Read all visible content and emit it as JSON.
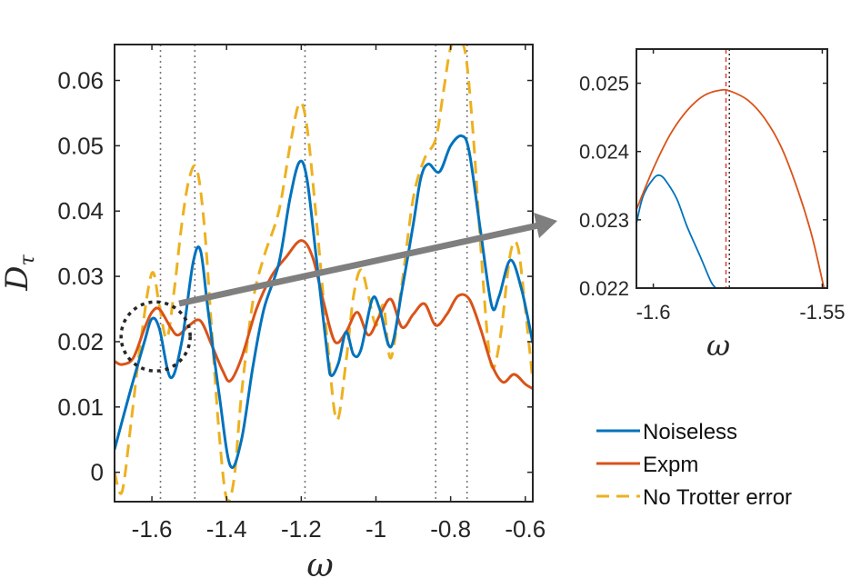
{
  "colors": {
    "noiseless": "#0072BD",
    "expm": "#D95319",
    "no_trotter": "#EDB120",
    "frame": "#262626",
    "guide": "#777777",
    "arrow": "#7F7F7F",
    "red_marker": "#E03030"
  },
  "chart_data": [
    {
      "type": "line",
      "role": "main",
      "xlabel": "ω",
      "ylabel_main": "D",
      "ylabel_sub": "τ",
      "xlim": [
        -1.7,
        -0.58
      ],
      "ylim": [
        -0.0045,
        0.0655
      ],
      "xticks": [
        -1.6,
        -1.4,
        -1.2,
        -1,
        -0.8,
        -0.6
      ],
      "xtick_labels": [
        "-1.6",
        "-1.4",
        "-1.2",
        "-1",
        "-0.8",
        "-0.6"
      ],
      "yticks": [
        0,
        0.01,
        0.02,
        0.03,
        0.04,
        0.05,
        0.06
      ],
      "ytick_labels": [
        "0",
        "0.01",
        "0.02",
        "0.03",
        "0.04",
        "0.05",
        "0.06"
      ],
      "vlines": [
        -1.577,
        -1.485,
        -1.19,
        -0.84,
        -0.756
      ],
      "zoom_circle_center": [
        -1.59,
        0.0208
      ],
      "series": [
        {
          "name": "Noiseless",
          "style": "solid",
          "points": [
            [
              -1.7,
              0.0035
            ],
            [
              -1.66,
              0.012
            ],
            [
              -1.62,
              0.02
            ],
            [
              -1.6,
              0.0235
            ],
            [
              -1.58,
              0.022
            ],
            [
              -1.55,
              0.0145
            ],
            [
              -1.52,
              0.02
            ],
            [
              -1.49,
              0.032
            ],
            [
              -1.47,
              0.034
            ],
            [
              -1.45,
              0.025
            ],
            [
              -1.42,
              0.012
            ],
            [
              -1.39,
              0.001
            ],
            [
              -1.36,
              0.005
            ],
            [
              -1.33,
              0.016
            ],
            [
              -1.3,
              0.025
            ],
            [
              -1.26,
              0.032
            ],
            [
              -1.23,
              0.042
            ],
            [
              -1.205,
              0.0475
            ],
            [
              -1.185,
              0.045
            ],
            [
              -1.16,
              0.033
            ],
            [
              -1.13,
              0.018
            ],
            [
              -1.12,
              0.0148
            ],
            [
              -1.1,
              0.0168
            ],
            [
              -1.08,
              0.0215
            ],
            [
              -1.06,
              0.018
            ],
            [
              -1.04,
              0.0188
            ],
            [
              -1.01,
              0.0265
            ],
            [
              -0.99,
              0.025
            ],
            [
              -0.96,
              0.0192
            ],
            [
              -0.93,
              0.028
            ],
            [
              -0.9,
              0.038
            ],
            [
              -0.88,
              0.045
            ],
            [
              -0.86,
              0.0472
            ],
            [
              -0.83,
              0.046
            ],
            [
              -0.8,
              0.05
            ],
            [
              -0.77,
              0.0515
            ],
            [
              -0.75,
              0.049
            ],
            [
              -0.72,
              0.037
            ],
            [
              -0.69,
              0.0255
            ],
            [
              -0.67,
              0.027
            ],
            [
              -0.64,
              0.0325
            ],
            [
              -0.61,
              0.028
            ],
            [
              -0.58,
              0.0198
            ]
          ]
        },
        {
          "name": "Expm",
          "style": "solid",
          "points": [
            [
              -1.7,
              0.017
            ],
            [
              -1.68,
              0.0165
            ],
            [
              -1.65,
              0.0175
            ],
            [
              -1.62,
              0.022
            ],
            [
              -1.6,
              0.0245
            ],
            [
              -1.58,
              0.025
            ],
            [
              -1.55,
              0.0222
            ],
            [
              -1.53,
              0.021
            ],
            [
              -1.5,
              0.0225
            ],
            [
              -1.47,
              0.0232
            ],
            [
              -1.44,
              0.0195
            ],
            [
              -1.41,
              0.0155
            ],
            [
              -1.39,
              0.014
            ],
            [
              -1.36,
              0.0175
            ],
            [
              -1.32,
              0.025
            ],
            [
              -1.28,
              0.03
            ],
            [
              -1.24,
              0.033
            ],
            [
              -1.2,
              0.0355
            ],
            [
              -1.17,
              0.033
            ],
            [
              -1.14,
              0.026
            ],
            [
              -1.11,
              0.02
            ],
            [
              -1.08,
              0.0215
            ],
            [
              -1.05,
              0.0245
            ],
            [
              -1.02,
              0.021
            ],
            [
              -0.99,
              0.024
            ],
            [
              -0.96,
              0.0265
            ],
            [
              -0.93,
              0.0222
            ],
            [
              -0.9,
              0.0242
            ],
            [
              -0.87,
              0.0258
            ],
            [
              -0.84,
              0.0225
            ],
            [
              -0.81,
              0.0242
            ],
            [
              -0.78,
              0.027
            ],
            [
              -0.75,
              0.0265
            ],
            [
              -0.72,
              0.022
            ],
            [
              -0.69,
              0.0165
            ],
            [
              -0.66,
              0.0138
            ],
            [
              -0.63,
              0.015
            ],
            [
              -0.6,
              0.0135
            ],
            [
              -0.58,
              0.0128
            ]
          ]
        },
        {
          "name": "No Trotter error",
          "style": "dashed",
          "points": [
            [
              -1.7,
              0.0
            ],
            [
              -1.68,
              -0.003
            ],
            [
              -1.655,
              0.008
            ],
            [
              -1.63,
              0.02
            ],
            [
              -1.6,
              0.0305
            ],
            [
              -1.58,
              0.0255
            ],
            [
              -1.56,
              0.0205
            ],
            [
              -1.54,
              0.028
            ],
            [
              -1.52,
              0.038
            ],
            [
              -1.5,
              0.045
            ],
            [
              -1.48,
              0.0465
            ],
            [
              -1.46,
              0.038
            ],
            [
              -1.44,
              0.022
            ],
            [
              -1.42,
              0.006
            ],
            [
              -1.4,
              -0.004
            ],
            [
              -1.38,
              -0.001
            ],
            [
              -1.36,
              0.012
            ],
            [
              -1.33,
              0.026
            ],
            [
              -1.3,
              0.033
            ],
            [
              -1.26,
              0.04
            ],
            [
              -1.23,
              0.05
            ],
            [
              -1.205,
              0.0565
            ],
            [
              -1.185,
              0.053
            ],
            [
              -1.16,
              0.039
            ],
            [
              -1.13,
              0.02
            ],
            [
              -1.105,
              0.008
            ],
            [
              -1.08,
              0.017
            ],
            [
              -1.06,
              0.027
            ],
            [
              -1.04,
              0.031
            ],
            [
              -1.02,
              0.027
            ],
            [
              -1.0,
              0.0225
            ],
            [
              -0.98,
              0.0255
            ],
            [
              -0.96,
              0.0175
            ],
            [
              -0.93,
              0.029
            ],
            [
              -0.9,
              0.042
            ],
            [
              -0.87,
              0.048
            ],
            [
              -0.84,
              0.051
            ],
            [
              -0.82,
              0.058
            ],
            [
              -0.8,
              0.065
            ],
            [
              -0.78,
              0.066
            ],
            [
              -0.76,
              0.064
            ],
            [
              -0.74,
              0.052
            ],
            [
              -0.72,
              0.035
            ],
            [
              -0.7,
              0.02
            ],
            [
              -0.685,
              0.016
            ],
            [
              -0.665,
              0.0215
            ],
            [
              -0.64,
              0.0335
            ],
            [
              -0.62,
              0.0345
            ],
            [
              -0.6,
              0.025
            ],
            [
              -0.58,
              0.014
            ]
          ]
        }
      ]
    },
    {
      "type": "line",
      "role": "inset",
      "xlabel": "ω",
      "xlim": [
        -1.605,
        -1.5485
      ],
      "ylim": [
        0.022,
        0.0255
      ],
      "xticks": [
        -1.6,
        -1.55
      ],
      "xtick_labels": [
        "-1.6",
        "-1.55"
      ],
      "yticks": [
        0.022,
        0.023,
        0.024,
        0.025
      ],
      "ytick_labels": [
        "0.022",
        "0.023",
        "0.024",
        "0.025"
      ],
      "vline_black": -1.5775,
      "vline_red": -1.5785,
      "series": [
        {
          "name": "Noiseless",
          "points": [
            [
              -1.605,
              0.02295
            ],
            [
              -1.603,
              0.02335
            ],
            [
              -1.6,
              0.0236
            ],
            [
              -1.598,
              0.02365
            ],
            [
              -1.596,
              0.02355
            ],
            [
              -1.593,
              0.0233
            ],
            [
              -1.59,
              0.0229
            ],
            [
              -1.586,
              0.02245
            ],
            [
              -1.583,
              0.0221
            ],
            [
              -1.5815,
              0.022
            ]
          ]
        },
        {
          "name": "Expm",
          "points": [
            [
              -1.605,
              0.02315
            ],
            [
              -1.6,
              0.02375
            ],
            [
              -1.595,
              0.02425
            ],
            [
              -1.59,
              0.0246
            ],
            [
              -1.585,
              0.02482
            ],
            [
              -1.58,
              0.0249
            ],
            [
              -1.577,
              0.02488
            ],
            [
              -1.572,
              0.02475
            ],
            [
              -1.567,
              0.02448
            ],
            [
              -1.562,
              0.02405
            ],
            [
              -1.557,
              0.0234
            ],
            [
              -1.553,
              0.02275
            ],
            [
              -1.5495,
              0.022
            ]
          ]
        }
      ]
    }
  ],
  "legend": {
    "items": [
      {
        "label": "Noiseless",
        "style": "solid",
        "series": "Noiseless"
      },
      {
        "label": "Expm",
        "style": "solid",
        "series": "Expm"
      },
      {
        "label": "No Trotter error",
        "style": "dashed",
        "series": "No Trotter error"
      }
    ]
  }
}
